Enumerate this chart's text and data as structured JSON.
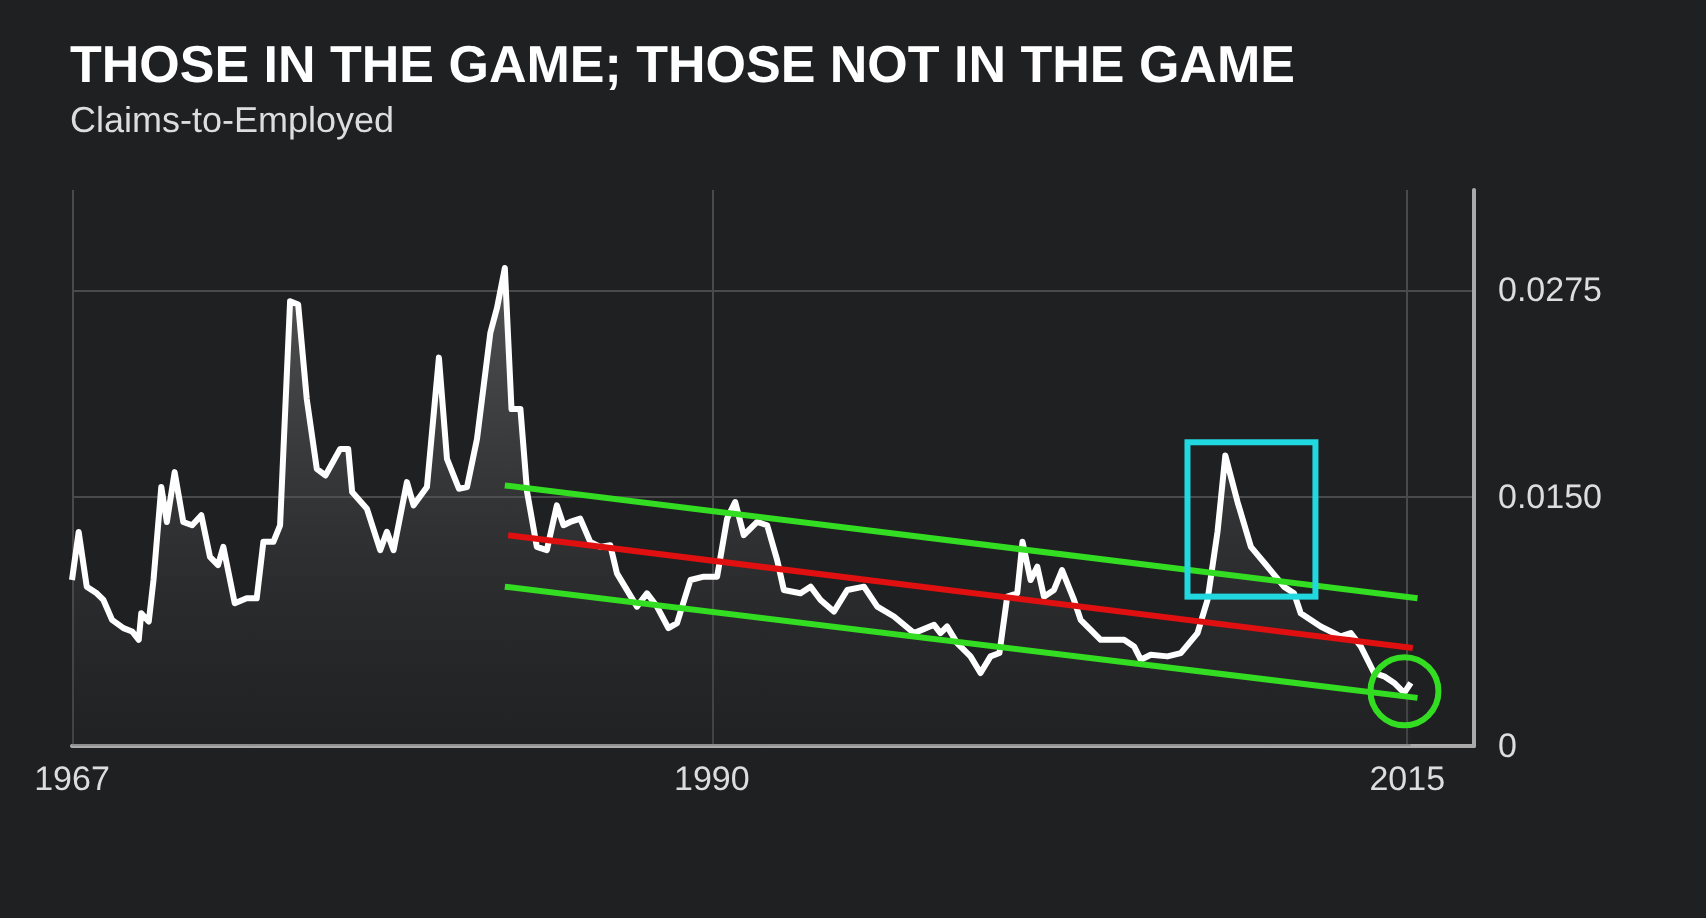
{
  "chart_data": {
    "type": "area",
    "title": "THOSE IN THE GAME; THOSE NOT IN THE GAME",
    "subtitle": "Claims-to-Employed",
    "xlim": [
      1967,
      2017.4
    ],
    "ylim": [
      0,
      0.0335
    ],
    "xticks": [
      1967,
      1990,
      2015
    ],
    "yticks": [
      0,
      {
        "value": 0.015,
        "label": "0.0150"
      },
      0.0275
    ],
    "grid": true,
    "marker": "none",
    "series": [
      {
        "color": "#ffffff",
        "x": [
          1967.0,
          1967.24,
          1967.53,
          1967.89,
          1968.13,
          1968.44,
          1968.85,
          1969.16,
          1969.4,
          1969.49,
          1969.76,
          1969.93,
          1970.21,
          1970.41,
          1970.69,
          1971.0,
          1971.32,
          1971.65,
          1971.96,
          1972.25,
          1972.44,
          1972.85,
          1973.28,
          1973.64,
          1973.88,
          1974.24,
          1974.48,
          1974.84,
          1975.13,
          1975.44,
          1975.8,
          1976.11,
          1976.64,
          1976.93,
          1977.07,
          1977.6,
          1978.08,
          1978.32,
          1978.56,
          1979.04,
          1979.28,
          1979.76,
          1980.19,
          1980.48,
          1980.91,
          1981.2,
          1981.56,
          1982.04,
          1982.28,
          1982.56,
          1982.8,
          1983.12,
          1983.36,
          1983.71,
          1984.07,
          1984.43,
          1984.67,
          1984.91,
          1985.27,
          1985.63,
          1985.99,
          1986.35,
          1986.59,
          1987.31,
          1987.67,
          1988.03,
          1988.44,
          1988.75,
          1989.23,
          1989.71,
          1990.19,
          1990.55,
          1990.84,
          1991.15,
          1991.63,
          1991.99,
          1992.35,
          1992.59,
          1993.19,
          1993.55,
          1993.91,
          1994.39,
          1994.87,
          1995.47,
          1995.95,
          1996.55,
          1997.27,
          1997.99,
          1998.22,
          1998.46,
          1998.82,
          1999.3,
          1999.66,
          2000.02,
          2000.34,
          2000.62,
          2000.98,
          2001.17,
          2001.46,
          2001.7,
          2001.94,
          2002.3,
          2002.59,
          2003.02,
          2003.26,
          2003.98,
          2004.82,
          2005.18,
          2005.42,
          2005.78,
          2006.38,
          2006.86,
          2007.46,
          2007.82,
          2008.18,
          2008.46,
          2008.9,
          2009.38,
          2009.98,
          2010.57,
          2010.93,
          2011.17,
          2011.89,
          2012.61,
          2012.97,
          2013.33,
          2013.81,
          2014.17,
          2014.53,
          2014.89,
          2015.13
        ],
        "values": [
          0.01,
          0.0129,
          0.0096,
          0.0092,
          0.0088,
          0.0076,
          0.0071,
          0.0069,
          0.0064,
          0.008,
          0.0075,
          0.01,
          0.0156,
          0.0135,
          0.0165,
          0.0135,
          0.0133,
          0.0139,
          0.0114,
          0.0109,
          0.012,
          0.0086,
          0.0089,
          0.0089,
          0.0123,
          0.0123,
          0.0133,
          0.0268,
          0.0266,
          0.0209,
          0.0167,
          0.0163,
          0.0179,
          0.0179,
          0.0153,
          0.0143,
          0.0118,
          0.0129,
          0.0118,
          0.0159,
          0.0145,
          0.0156,
          0.0234,
          0.0173,
          0.0155,
          0.0156,
          0.0185,
          0.0249,
          0.0264,
          0.0288,
          0.0203,
          0.0203,
          0.0153,
          0.012,
          0.0118,
          0.0145,
          0.0133,
          0.0135,
          0.0137,
          0.0123,
          0.012,
          0.0121,
          0.0104,
          0.0084,
          0.0092,
          0.0084,
          0.0071,
          0.0074,
          0.01,
          0.0102,
          0.0102,
          0.0137,
          0.0147,
          0.0127,
          0.0135,
          0.0133,
          0.0112,
          0.0094,
          0.0092,
          0.0096,
          0.0088,
          0.0081,
          0.0094,
          0.0096,
          0.0084,
          0.0078,
          0.0068,
          0.0073,
          0.0068,
          0.0072,
          0.0062,
          0.0054,
          0.0044,
          0.0054,
          0.0056,
          0.009,
          0.0092,
          0.0123,
          0.01,
          0.0108,
          0.009,
          0.0094,
          0.0106,
          0.0088,
          0.0076,
          0.0064,
          0.0064,
          0.006,
          0.0052,
          0.0055,
          0.0054,
          0.0056,
          0.0068,
          0.0088,
          0.0129,
          0.0175,
          0.0147,
          0.012,
          0.0108,
          0.0096,
          0.0092,
          0.008,
          0.0072,
          0.0066,
          0.0068,
          0.006,
          0.0044,
          0.0042,
          0.0038,
          0.0032,
          0.0038
        ]
      },
      {
        "type": "line",
        "color": "#33dd22",
        "x": [
          1982.56,
          2015.37
        ],
        "values": [
          0.0157,
          0.0089
        ]
      },
      {
        "type": "line",
        "color": "#e01010",
        "x": [
          1982.68,
          2015.2
        ],
        "values": [
          0.0127,
          0.0059
        ]
      },
      {
        "type": "line",
        "color": "#33dd22",
        "x": [
          1982.56,
          2015.37
        ],
        "values": [
          0.0096,
          0.0029
        ]
      }
    ]
  }
}
